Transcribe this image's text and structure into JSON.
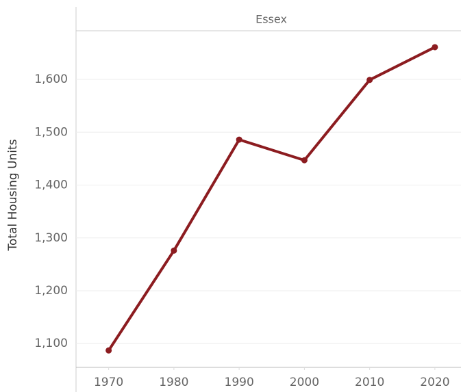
{
  "chart_data": {
    "type": "line",
    "panel_title": "Essex",
    "y_label": "Total Housing Units",
    "x": [
      1970,
      1980,
      1990,
      2000,
      2010,
      2020
    ],
    "series": [
      {
        "name": "Essex",
        "color": "#8c1c20",
        "values": [
          1087,
          1276,
          1486,
          1447,
          1599,
          1661
        ]
      }
    ],
    "xlim": [
      1965,
      2024
    ],
    "xticks": [
      1970,
      1980,
      1990,
      2000,
      2010,
      2020
    ],
    "ylim": [
      1055,
      1692
    ],
    "yticks": [
      {
        "value": 1100,
        "label": "1,100"
      },
      {
        "value": 1200,
        "label": "1,200"
      },
      {
        "value": 1300,
        "label": "1,300"
      },
      {
        "value": 1400,
        "label": "1,400"
      },
      {
        "value": 1500,
        "label": "1,500"
      },
      {
        "value": 1600,
        "label": "1,600"
      }
    ],
    "grid": true
  }
}
